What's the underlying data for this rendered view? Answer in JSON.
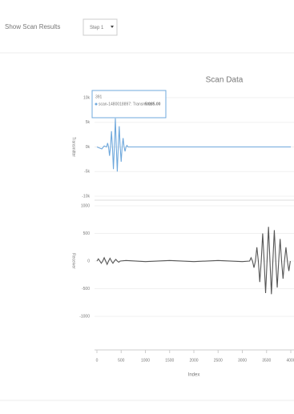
{
  "controls": {
    "label": "Show Scan Results",
    "dropdown": "Step 1"
  },
  "tooltip": {
    "header": "391",
    "series": "scan-1480018897: Transmitter:",
    "value": "5 035.00"
  },
  "chart_data": {
    "type": "line",
    "title": "Scan Data",
    "xlabel": "Index",
    "xlim": [
      0,
      4000
    ],
    "xticks": [
      0,
      500,
      1000,
      1500,
      2000,
      2500,
      3000,
      3500,
      4000
    ],
    "panels": [
      {
        "ylabel": "Transmitter",
        "color": "#6fa8dc",
        "ylim": [
          -10000,
          10000
        ],
        "yticks": [
          {
            "value": -10000,
            "label": "-10k"
          },
          {
            "value": -5000,
            "label": "-5k"
          },
          {
            "value": 0,
            "label": "0k"
          },
          {
            "value": 5000,
            "label": "5k"
          },
          {
            "value": 10000,
            "label": "10k"
          }
        ],
        "x": [
          0,
          100,
          150,
          200,
          220,
          240,
          260,
          280,
          300,
          320,
          340,
          360,
          380,
          400,
          420,
          440,
          460,
          480,
          500,
          520,
          540,
          560,
          580,
          600,
          620,
          640,
          700,
          1000,
          2000,
          3000,
          4000
        ],
        "values": [
          0,
          -400,
          200,
          0,
          800,
          0,
          -1800,
          0,
          3200,
          0,
          -4500,
          0,
          5800,
          0,
          -5000,
          0,
          4200,
          0,
          -3000,
          0,
          1800,
          0,
          -900,
          0,
          300,
          0,
          0,
          0,
          0,
          0,
          0
        ]
      },
      {
        "ylabel": "Receiver",
        "color": "#555555",
        "ylim": [
          -1000,
          1000
        ],
        "yticks": [
          -1000,
          -500,
          0,
          500,
          1000
        ],
        "x": [
          0,
          30,
          60,
          90,
          120,
          150,
          180,
          210,
          240,
          270,
          300,
          330,
          360,
          390,
          420,
          450,
          480,
          600,
          1000,
          1500,
          2000,
          2500,
          3000,
          3150,
          3180,
          3210,
          3240,
          3270,
          3300,
          3330,
          3360,
          3390,
          3420,
          3450,
          3480,
          3510,
          3540,
          3570,
          3600,
          3630,
          3660,
          3690,
          3720,
          3750,
          3780,
          3810,
          3840,
          3870,
          3900,
          3930,
          3960,
          3990
        ],
        "values": [
          0,
          40,
          0,
          -40,
          0,
          60,
          0,
          -60,
          0,
          50,
          0,
          -40,
          0,
          30,
          0,
          -20,
          0,
          10,
          -10,
          10,
          -10,
          10,
          -10,
          0,
          60,
          0,
          -120,
          0,
          250,
          0,
          -380,
          0,
          500,
          0,
          -580,
          0,
          620,
          0,
          -600,
          0,
          560,
          0,
          -480,
          0,
          400,
          0,
          -320,
          0,
          250,
          0,
          -180,
          0
        ]
      }
    ]
  }
}
